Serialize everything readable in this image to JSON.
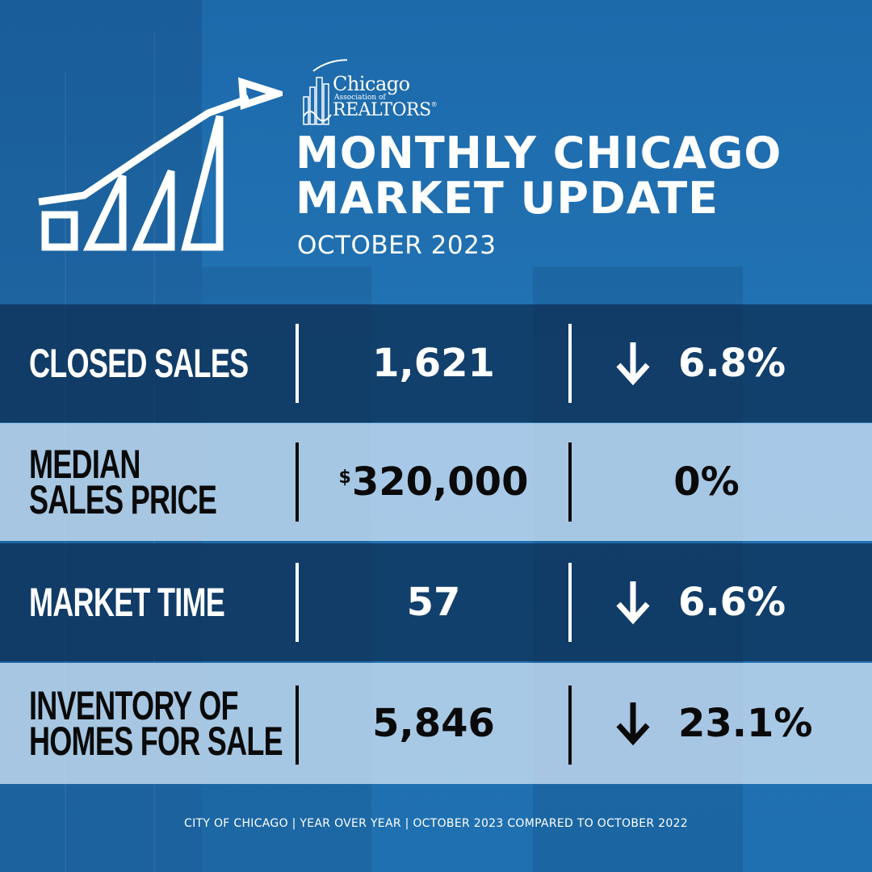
{
  "brand": {
    "logo_line1": "Chicago",
    "logo_line2": "Association of",
    "logo_line3": "REALTORS",
    "logo_mark": "®"
  },
  "header": {
    "title_line1": "MONTHLY CHICAGO",
    "title_line2": "MARKET UPDATE",
    "subtitle": "OCTOBER 2023"
  },
  "icons": {
    "chart_icon": "rising-bar-chart-icon",
    "down_arrow": "down-arrow-icon"
  },
  "metrics": [
    {
      "label_line1": "CLOSED SALES",
      "label_line2": "",
      "value_prefix": "",
      "value": "1,621",
      "change": "6.8%",
      "direction": "down"
    },
    {
      "label_line1": "MEDIAN",
      "label_line2": "SALES PRICE",
      "value_prefix": "$",
      "value": "320,000",
      "change": "0%",
      "direction": "none"
    },
    {
      "label_line1": "MARKET TIME",
      "label_line2": "",
      "value_prefix": "",
      "value": "57",
      "change": "6.6%",
      "direction": "down"
    },
    {
      "label_line1": "INVENTORY OF",
      "label_line2": "HOMES FOR SALE",
      "value_prefix": "",
      "value": "5,846",
      "change": "23.1%",
      "direction": "down"
    }
  ],
  "footer": {
    "text": "CITY OF CHICAGO | YEAR OVER YEAR | OCTOBER 2023 COMPARED TO OCTOBER 2022"
  },
  "colors": {
    "background_blue": "#1e6fae",
    "dark_row": "#0c2d50",
    "light_row": "#cde2f5",
    "white": "#ffffff",
    "black": "#0a0a0a"
  }
}
